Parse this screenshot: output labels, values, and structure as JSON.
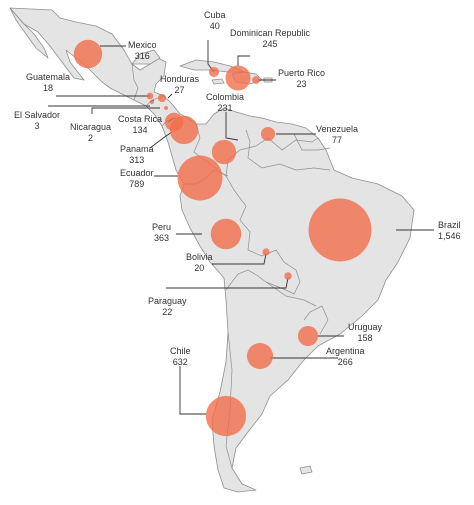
{
  "colors": {
    "bubble": "#f26b47",
    "land": "#e4e4e4",
    "border": "#8f8f8f",
    "text": "#333333",
    "background": "#ffffff"
  },
  "countries": [
    {
      "id": "mexico",
      "name": "Mexico",
      "value": "316"
    },
    {
      "id": "cuba",
      "name": "Cuba",
      "value": "40"
    },
    {
      "id": "dominican-republic",
      "name": "Dominican Republic",
      "value": "245"
    },
    {
      "id": "puerto-rico",
      "name": "Puerto Rico",
      "value": "23"
    },
    {
      "id": "guatemala",
      "name": "Guatemala",
      "value": "18"
    },
    {
      "id": "honduras",
      "name": "Honduras",
      "value": "27"
    },
    {
      "id": "el-salvador",
      "name": "El Salvador",
      "value": "3"
    },
    {
      "id": "nicaragua",
      "name": "Nicaragua",
      "value": "2"
    },
    {
      "id": "costa-rica",
      "name": "Costa Rica",
      "value": "134"
    },
    {
      "id": "colombia",
      "name": "Colombia",
      "value": "231"
    },
    {
      "id": "venezuela",
      "name": "Venezuela",
      "value": "77"
    },
    {
      "id": "panama",
      "name": "Panama",
      "value": "313"
    },
    {
      "id": "ecuador",
      "name": "Ecuador",
      "value": "789"
    },
    {
      "id": "brazil",
      "name": "Brazil",
      "value": "1,546"
    },
    {
      "id": "peru",
      "name": "Peru",
      "value": "363"
    },
    {
      "id": "bolivia",
      "name": "Bolivia",
      "value": "20"
    },
    {
      "id": "paraguay",
      "name": "Paraguay",
      "value": "22"
    },
    {
      "id": "uruguay",
      "name": "Uruguay",
      "value": "158"
    },
    {
      "id": "argentina",
      "name": "Argentina",
      "value": "266"
    },
    {
      "id": "chile",
      "name": "Chile",
      "value": "632"
    }
  ]
}
